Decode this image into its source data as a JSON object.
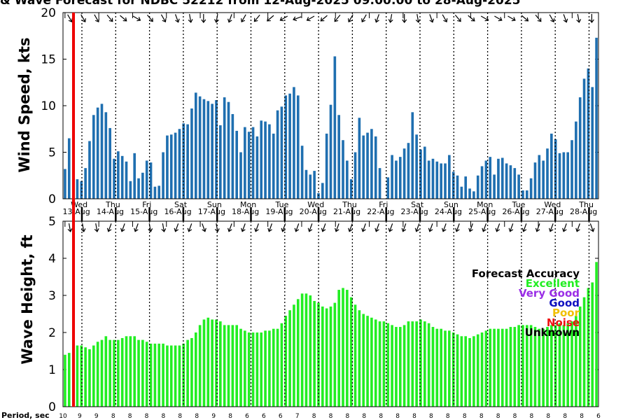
{
  "chart_data": [
    {
      "type": "bar",
      "title": "& Wave Forecast for NDBC 52212 from 12-Aug-2025 09:00:00 to 28-Aug-2025",
      "ylabel": "Wind Speed, kts",
      "ylim": [
        0,
        20
      ],
      "yticks": [
        "0",
        "5",
        "10",
        "15",
        "20"
      ],
      "color": "#1f6fb0",
      "values": [
        3.2,
        6.5,
        0,
        2.1,
        1.9,
        3.3,
        6.2,
        9.0,
        9.8,
        10.2,
        9.3,
        7.6,
        4.3,
        5.1,
        4.6,
        4.0,
        1.9,
        4.9,
        2.2,
        2.8,
        4.1,
        3.9,
        1.3,
        1.4,
        5.0,
        6.8,
        6.9,
        7.1,
        7.5,
        8.1,
        8.0,
        9.7,
        11.4,
        11.0,
        10.7,
        10.5,
        10.2,
        10.6,
        7.9,
        10.9,
        10.4,
        9.1,
        7.3,
        5.0,
        7.7,
        7.2,
        7.7,
        6.7,
        8.4,
        8.3,
        8.0,
        7.0,
        9.5,
        9.9,
        11.1,
        11.3,
        12.0,
        11.1,
        5.7,
        3.1,
        2.6,
        3.0,
        0.6,
        1.7,
        7.0,
        10.1,
        15.3,
        9.0,
        6.3,
        4.1,
        2.1,
        5.0,
        8.7,
        6.8,
        7.1,
        7.5,
        6.7,
        3.3,
        0.0,
        2.3,
        4.7,
        4.1,
        4.5,
        5.4,
        6.0,
        9.3,
        6.9,
        5.3,
        5.6,
        4.1,
        4.3,
        4.0,
        3.8,
        3.8,
        4.7,
        2.9,
        2.5,
        1.3,
        2.4,
        1.1,
        0.8,
        2.5,
        3.5,
        4.1,
        4.5,
        2.6,
        4.3,
        4.4,
        3.8,
        3.6,
        3.3,
        2.6,
        0.9,
        0.9,
        2.2,
        3.9,
        4.7,
        4.1,
        5.4,
        7.0,
        6.4,
        4.9,
        5.0,
        5.0,
        6.3,
        8.3,
        10.9,
        12.9,
        14.0,
        12.0,
        17.3
      ]
    },
    {
      "type": "bar",
      "ylabel": "Wave Height, ft",
      "ylim": [
        0,
        5
      ],
      "yticks": [
        "0",
        "1",
        "2",
        "3",
        "4",
        "5"
      ],
      "color": "#22ee22",
      "values": [
        1.4,
        1.45,
        0,
        1.65,
        1.65,
        1.6,
        1.55,
        1.65,
        1.75,
        1.8,
        1.9,
        1.8,
        1.8,
        1.8,
        1.85,
        1.9,
        1.9,
        1.9,
        1.8,
        1.8,
        1.75,
        1.7,
        1.7,
        1.7,
        1.7,
        1.65,
        1.65,
        1.65,
        1.65,
        1.7,
        1.8,
        1.85,
        2.0,
        2.2,
        2.35,
        2.4,
        2.35,
        2.35,
        2.3,
        2.2,
        2.2,
        2.2,
        2.2,
        2.1,
        2.05,
        2.0,
        2.0,
        2.0,
        2.0,
        2.05,
        2.05,
        2.1,
        2.1,
        2.25,
        2.45,
        2.6,
        2.75,
        2.9,
        3.05,
        3.05,
        3.0,
        2.85,
        2.8,
        2.7,
        2.65,
        2.7,
        2.8,
        3.15,
        3.2,
        3.15,
        2.95,
        2.75,
        2.6,
        2.5,
        2.45,
        2.4,
        2.35,
        2.3,
        2.3,
        2.25,
        2.2,
        2.15,
        2.15,
        2.2,
        2.3,
        2.3,
        2.3,
        2.35,
        2.3,
        2.25,
        2.15,
        2.1,
        2.1,
        2.05,
        2.05,
        2.0,
        1.95,
        1.9,
        1.9,
        1.85,
        1.9,
        1.95,
        2.0,
        2.05,
        2.1,
        2.1,
        2.1,
        2.1,
        2.1,
        2.15,
        2.15,
        2.2,
        2.2,
        2.2,
        2.2,
        2.15,
        2.1,
        2.1,
        2.15,
        2.2,
        2.2,
        2.25,
        2.2,
        2.25,
        2.3,
        2.45,
        2.7,
        2.95,
        3.2,
        3.35,
        3.9
      ]
    }
  ],
  "days": [
    {
      "dow": "Wed",
      "date": "13-Aug"
    },
    {
      "dow": "Thu",
      "date": "14-Aug"
    },
    {
      "dow": "Fri",
      "date": "15-Aug"
    },
    {
      "dow": "Sat",
      "date": "16-Aug"
    },
    {
      "dow": "Sun",
      "date": "17-Aug"
    },
    {
      "dow": "Mon",
      "date": "18-Aug"
    },
    {
      "dow": "Tue",
      "date": "19-Aug"
    },
    {
      "dow": "Wed",
      "date": "20-Aug"
    },
    {
      "dow": "Thu",
      "date": "21-Aug"
    },
    {
      "dow": "Fri",
      "date": "22-Aug"
    },
    {
      "dow": "Sat",
      "date": "23-Aug"
    },
    {
      "dow": "Sun",
      "date": "24-Aug"
    },
    {
      "dow": "Mon",
      "date": "25-Aug"
    },
    {
      "dow": "Tue",
      "date": "26-Aug"
    },
    {
      "dow": "Wed",
      "date": "27-Aug"
    },
    {
      "dow": "Thu",
      "date": "28-Aug"
    }
  ],
  "legend": {
    "title": "Forecast Accuracy",
    "items": [
      {
        "label": "Excellent",
        "color": "#22ee22"
      },
      {
        "label": "Very Good",
        "color": "#9a2ee6"
      },
      {
        "label": "Good",
        "color": "#1010c0"
      },
      {
        "label": "Poor",
        "color": "#f0c000"
      },
      {
        "label": "Noise",
        "color": "#ee1111"
      },
      {
        "label": "Unknown",
        "color": "#000000"
      }
    ]
  },
  "period": {
    "label": "Period, sec",
    "values": [
      "10",
      "9",
      "9",
      "8",
      "8",
      "8",
      "8",
      "8",
      "8",
      "9",
      "8",
      "6",
      "6",
      "6",
      "7",
      "8",
      "8",
      "8",
      "8",
      "8",
      "8",
      "8",
      "8",
      "8",
      "8",
      "8",
      "8",
      "8",
      "8",
      "8",
      "8",
      "8",
      "6"
    ]
  },
  "wind_dir_deg": [
    330,
    330,
    330,
    320,
    310,
    300,
    320,
    330,
    340,
    350,
    0,
    10,
    20,
    30,
    40,
    50,
    60,
    70,
    60,
    50,
    40,
    30,
    30,
    20,
    10,
    0,
    350,
    340,
    330,
    320,
    310,
    300,
    300,
    300,
    310,
    320,
    330,
    340,
    350,
    0
  ],
  "wave_dir_deg": [
    350,
    350,
    350,
    20,
    20,
    20,
    350,
    350,
    20,
    20,
    340,
    350,
    20,
    20,
    20,
    20,
    20,
    20,
    20,
    20,
    20,
    20,
    20,
    20,
    20,
    20,
    20,
    20,
    20,
    20,
    20,
    20,
    20,
    20,
    20,
    20,
    20,
    20,
    20,
    340
  ],
  "now_marker_color": "#ee0000"
}
